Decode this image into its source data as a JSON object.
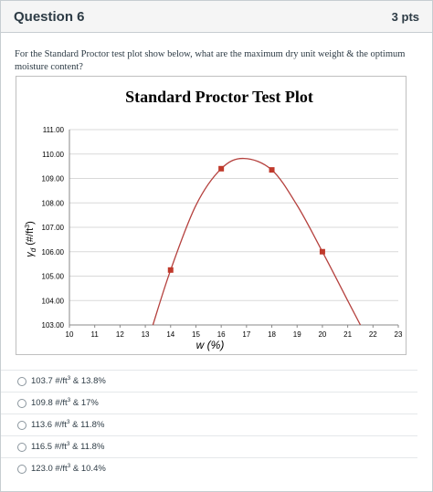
{
  "question": {
    "title": "Question 6",
    "points": "3 pts",
    "text": "For the Standard Proctor test plot show below, what are the maximum dry unit weight & the optimum moisture content?"
  },
  "answers": [
    {
      "value": "103.7 #/ft",
      "exp": "3",
      "moisture": " & 13.8%"
    },
    {
      "value": "109.8 #/ft",
      "exp": "3",
      "moisture": " & 17%"
    },
    {
      "value": "113.6 #/ft",
      "exp": "3",
      "moisture": " & 11.8%"
    },
    {
      "value": "116.5 #/ft",
      "exp": "3",
      "moisture": " & 11.8%"
    },
    {
      "value": "123.0 #/ft",
      "exp": "3",
      "moisture": " & 10.4%"
    }
  ],
  "chart_data": {
    "type": "scatter",
    "title": "Standard Proctor Test Plot",
    "xlabel": "w (%)",
    "ylabel_symbol": "γ",
    "ylabel_subscript": "d",
    "ylabel_units": " (#/ft",
    "ylabel_exp": "3",
    "ylabel_close": ")",
    "xlim": [
      10,
      23
    ],
    "ylim": [
      103,
      111
    ],
    "xticks": [
      "10",
      "11",
      "12",
      "13",
      "14",
      "15",
      "16",
      "17",
      "18",
      "19",
      "20",
      "21",
      "22",
      "23"
    ],
    "yticks": [
      "103.00",
      "104.00",
      "105.00",
      "106.00",
      "107.00",
      "108.00",
      "109.00",
      "110.00",
      "111.00"
    ],
    "grid": "horizontal",
    "points": [
      {
        "x": 14,
        "y": 105.25
      },
      {
        "x": 16,
        "y": 109.4
      },
      {
        "x": 18,
        "y": 109.35
      },
      {
        "x": 20,
        "y": 106.0
      }
    ],
    "curve": [
      {
        "x": 13.3,
        "y": 103.0
      },
      {
        "x": 14,
        "y": 105.25
      },
      {
        "x": 15,
        "y": 107.9
      },
      {
        "x": 16,
        "y": 109.4
      },
      {
        "x": 16.9,
        "y": 109.82
      },
      {
        "x": 18,
        "y": 109.35
      },
      {
        "x": 19,
        "y": 107.9
      },
      {
        "x": 20,
        "y": 106.0
      },
      {
        "x": 21,
        "y": 104.0
      },
      {
        "x": 21.5,
        "y": 103.0
      }
    ],
    "colors": {
      "curve": "#b5413e",
      "marker": "#c0392b",
      "grid": "#d9d9d9"
    }
  }
}
